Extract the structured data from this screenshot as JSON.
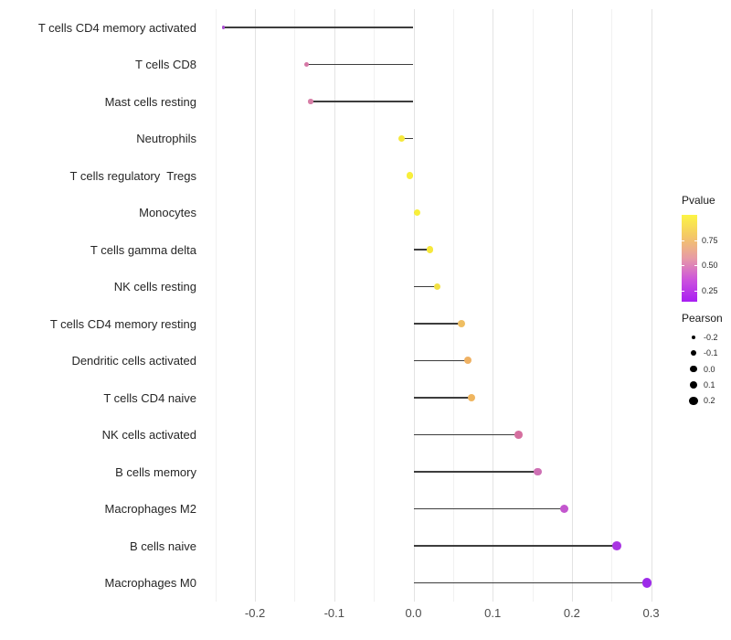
{
  "chart_data": {
    "type": "scatter",
    "variant": "lollipop",
    "orientation": "horizontal",
    "title": "",
    "xlabel": "",
    "ylabel": "",
    "xlim": [
      -0.267,
      0.322
    ],
    "x_tick_labels": [
      "-0.2",
      "-0.1",
      "0.0",
      "0.1",
      "0.2",
      "0.3"
    ],
    "x_tick_values": [
      -0.2,
      -0.1,
      0.0,
      0.1,
      0.2,
      0.3
    ],
    "x_minor_values": [
      -0.25,
      -0.15,
      -0.05,
      0.05,
      0.15,
      0.25
    ],
    "grid": "major+minor",
    "points": [
      {
        "label": "T cells CD4 memory activated",
        "pearson": -0.24,
        "color": "#AB4FD2"
      },
      {
        "label": "T cells CD8",
        "pearson": -0.135,
        "color": "#D678A6"
      },
      {
        "label": "Mast cells resting",
        "pearson": -0.13,
        "color": "#D77FA7"
      },
      {
        "label": "Neutrophils",
        "pearson": -0.015,
        "color": "#F5E83D"
      },
      {
        "label": "T cells regulatory  Tregs",
        "pearson": -0.005,
        "color": "#F8EF3B"
      },
      {
        "label": "Monocytes",
        "pearson": 0.005,
        "color": "#F8EF3B"
      },
      {
        "label": "T cells gamma delta",
        "pearson": 0.021,
        "color": "#F6E83C"
      },
      {
        "label": "NK cells resting",
        "pearson": 0.03,
        "color": "#F2E044"
      },
      {
        "label": "T cells CD4 memory resting",
        "pearson": 0.061,
        "color": "#EFBE62"
      },
      {
        "label": "Dendritic cells activated",
        "pearson": 0.069,
        "color": "#EFB163"
      },
      {
        "label": "T cells CD4 naive",
        "pearson": 0.073,
        "color": "#EFB55F"
      },
      {
        "label": "NK cells activated",
        "pearson": 0.133,
        "color": "#D56F9F"
      },
      {
        "label": "B cells memory",
        "pearson": 0.157,
        "color": "#CE70B4"
      },
      {
        "label": "Macrophages M2",
        "pearson": 0.19,
        "color": "#C356CE"
      },
      {
        "label": "B cells naive",
        "pearson": 0.257,
        "color": "#A936E2"
      },
      {
        "label": "Macrophages M0",
        "pearson": 0.295,
        "color": "#9D2BE9"
      }
    ],
    "legend": {
      "pvalue": {
        "title": "Pvalue",
        "tick_labels": [
          "0.75",
          "0.50",
          "0.25"
        ],
        "tick_positions_pct": [
          29.5,
          58.0,
          87.4
        ],
        "gradient_top_to_bottom": [
          "#FCF544",
          "#F4C767",
          "#E79BA6",
          "#CC53DD",
          "#A81EF2"
        ]
      },
      "pearson": {
        "title": "Pearson",
        "entries": [
          {
            "label": "-0.2",
            "value": -0.2
          },
          {
            "label": "-0.1",
            "value": -0.1
          },
          {
            "label": "0.0",
            "value": 0.0
          },
          {
            "label": "0.1",
            "value": 0.1
          },
          {
            "label": "0.2",
            "value": 0.2
          }
        ],
        "dot_color": "#000000"
      }
    },
    "stem_color": "#3D3D3D",
    "axis_text_color": "#4D4D4D"
  }
}
